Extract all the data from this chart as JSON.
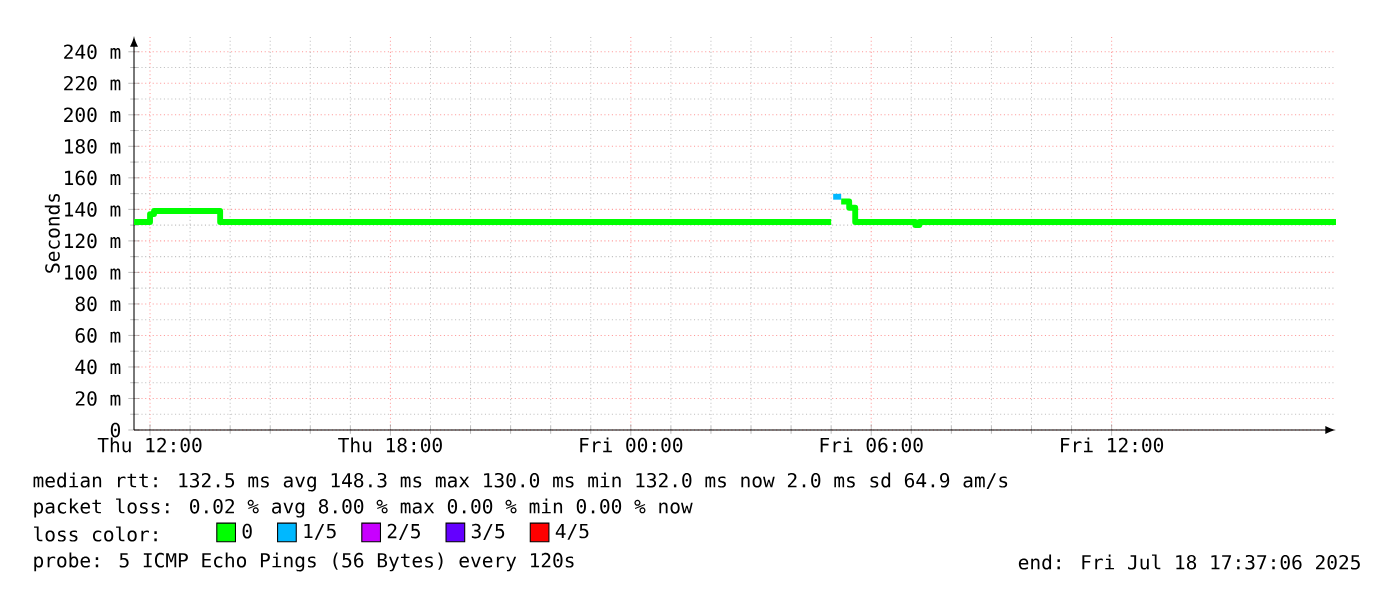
{
  "chart_data": {
    "type": "step",
    "ylabel": "Seconds",
    "xlim": [
      "2025-07-17T11:36",
      "2025-07-18T17:36"
    ],
    "xticks": [
      {
        "value": "2025-07-17T12:00",
        "label": "Thu 12:00"
      },
      {
        "value": "2025-07-17T18:00",
        "label": "Thu 18:00"
      },
      {
        "value": "2025-07-18T00:00",
        "label": "Fri 00:00"
      },
      {
        "value": "2025-07-18T06:00",
        "label": "Fri 06:00"
      },
      {
        "value": "2025-07-18T12:00",
        "label": "Fri 12:00"
      }
    ],
    "ylim": [
      0,
      250
    ],
    "yticks": [
      0,
      {
        "value": 20,
        "label": "20 m"
      },
      {
        "value": 40,
        "label": "40 m"
      },
      {
        "value": 60,
        "label": "60 m"
      },
      {
        "value": 80,
        "label": "80 m"
      },
      {
        "value": 100,
        "label": "100 m"
      },
      {
        "value": 120,
        "label": "120 m"
      },
      {
        "value": 140,
        "label": "140 m"
      },
      {
        "value": 160,
        "label": "160 m"
      },
      {
        "value": 180,
        "label": "180 m"
      },
      {
        "value": 200,
        "label": "200 m"
      },
      {
        "value": 220,
        "label": "220 m"
      },
      {
        "value": 240,
        "label": "240 m"
      }
    ],
    "grid": true,
    "legend": "bottom",
    "legend_title": "loss color:",
    "series": [
      {
        "name": "0",
        "color": "#00ff00",
        "x": [
          "2025-07-17T11:36",
          "2025-07-17T12:00",
          "2025-07-17T12:06",
          "2025-07-17T13:45",
          "2025-07-18T05:00",
          "2025-07-18T05:03",
          "2025-07-18T05:15",
          "2025-07-18T05:27",
          "2025-07-18T05:36",
          "2025-07-18T07:06",
          "2025-07-18T07:12",
          "2025-07-18T17:36"
        ],
        "values": [
          132,
          137,
          139,
          132,
          132,
          null,
          145,
          141,
          132,
          130,
          132,
          132
        ]
      },
      {
        "name": "1/5",
        "color": "#00b8ff",
        "x": [
          "2025-07-18T05:03",
          "2025-07-18T05:15"
        ],
        "values": [
          148,
          148
        ]
      },
      {
        "name": "2/5",
        "color": "#c800ff"
      },
      {
        "name": "3/5",
        "color": "#6400ff"
      },
      {
        "name": "4/5",
        "color": "#ff0000"
      }
    ],
    "annotations": [
      "median rtt: 132.5 ms avg 148.3 ms max 130.0 ms min 132.0 ms now 2.0 ms sd 64.9 am/s",
      "packet loss: 0.02 % avg 8.00 % max 0.00 % min 0.00 % now",
      "probe: 5 ICMP Echo Pings (56 Bytes) every 120s",
      "end: Fri Jul 18 17:37:06 2025"
    ]
  }
}
